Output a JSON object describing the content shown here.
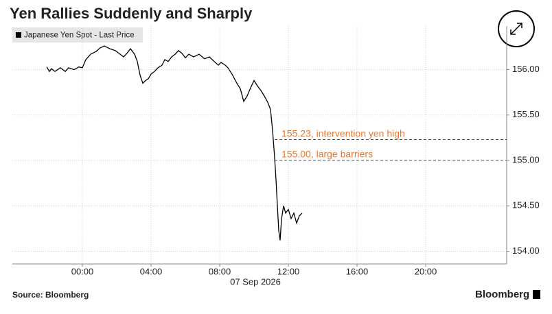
{
  "chart_data": {
    "type": "line",
    "title": "Yen Rallies Suddenly and Sharply",
    "x_label": "07 Sep 2026",
    "source": "Source: Bloomberg",
    "brand": "Bloomberg",
    "grid": true,
    "series": [
      {
        "name": "Japanese Yen Spot - Last Price",
        "color": "#000000",
        "x": [
          -2.08,
          -1.92,
          -1.8,
          -1.6,
          -1.28,
          -1.0,
          -0.8,
          -0.48,
          -0.2,
          0,
          0.2,
          0.48,
          0.8,
          1.04,
          1.28,
          1.6,
          1.92,
          2.2,
          2.4,
          2.6,
          2.8,
          3.04,
          3.2,
          3.36,
          3.52,
          3.68,
          3.84,
          4.0,
          4.2,
          4.4,
          4.64,
          4.8,
          5.0,
          5.2,
          5.4,
          5.6,
          5.8,
          6.0,
          6.2,
          6.48,
          6.8,
          7.12,
          7.4,
          7.68,
          7.92,
          8.08,
          8.32,
          8.48,
          8.72,
          9.0,
          9.2,
          9.4,
          9.6,
          9.8,
          10.0,
          10.2,
          10.4,
          10.6,
          10.8,
          10.96,
          11.08,
          11.2,
          11.28,
          11.36,
          11.44,
          11.52,
          11.6,
          11.72,
          11.84,
          12.0,
          12.16,
          12.32,
          12.48,
          12.64,
          12.8
        ],
        "values": [
          156.03,
          155.98,
          156.01,
          155.98,
          156.02,
          155.98,
          156.02,
          156.0,
          156.03,
          156.02,
          156.11,
          156.17,
          156.2,
          156.24,
          156.26,
          156.23,
          156.21,
          156.17,
          156.14,
          156.18,
          156.23,
          156.17,
          156.09,
          155.94,
          155.85,
          155.88,
          155.9,
          155.95,
          155.98,
          156.02,
          156.05,
          156.11,
          156.09,
          156.14,
          156.17,
          156.21,
          156.18,
          156.13,
          156.17,
          156.14,
          156.17,
          156.12,
          156.14,
          156.09,
          156.05,
          156.08,
          156.05,
          156.02,
          155.95,
          155.85,
          155.79,
          155.65,
          155.71,
          155.8,
          155.88,
          155.82,
          155.77,
          155.71,
          155.64,
          155.56,
          155.33,
          155.03,
          154.79,
          154.5,
          154.23,
          154.12,
          154.35,
          154.5,
          154.42,
          154.46,
          154.36,
          154.42,
          154.31,
          154.39,
          154.42
        ]
      }
    ],
    "annotations": [
      {
        "value": 155.23,
        "label": "155.23, intervention yen high",
        "color": "#e8772e"
      },
      {
        "value": 155.0,
        "label": "155.00, large barriers",
        "color": "#e8772e"
      }
    ],
    "xlim": [
      -4.08,
      24.72
    ],
    "xticks": [
      {
        "value": 0,
        "label": "00:00"
      },
      {
        "value": 4,
        "label": "04:00"
      },
      {
        "value": 8,
        "label": "08:00"
      },
      {
        "value": 12,
        "label": "12:00"
      },
      {
        "value": 16,
        "label": "16:00"
      },
      {
        "value": 20,
        "label": "20:00"
      }
    ],
    "ylim": [
      153.86,
      156.48
    ],
    "yticks": [
      {
        "value": 154.0,
        "label": "154.00"
      },
      {
        "value": 154.5,
        "label": "154.50"
      },
      {
        "value": 155.0,
        "label": "155.00"
      },
      {
        "value": 155.5,
        "label": "155.50"
      },
      {
        "value": 156.0,
        "label": "156.00"
      }
    ]
  }
}
